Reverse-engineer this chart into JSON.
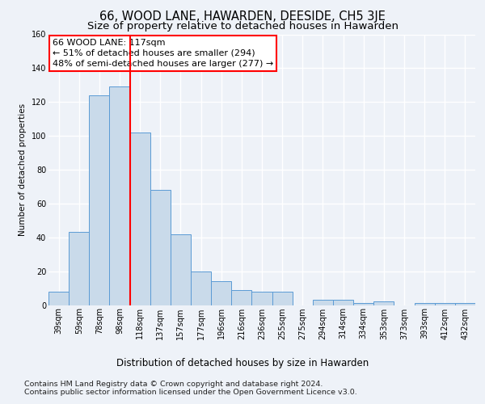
{
  "title": "66, WOOD LANE, HAWARDEN, DEESIDE, CH5 3JE",
  "subtitle": "Size of property relative to detached houses in Hawarden",
  "xlabel_bottom": "Distribution of detached houses by size in Hawarden",
  "ylabel": "Number of detached properties",
  "categories": [
    "39sqm",
    "59sqm",
    "78sqm",
    "98sqm",
    "118sqm",
    "137sqm",
    "157sqm",
    "177sqm",
    "196sqm",
    "216sqm",
    "236sqm",
    "255sqm",
    "275sqm",
    "294sqm",
    "314sqm",
    "334sqm",
    "353sqm",
    "373sqm",
    "393sqm",
    "412sqm",
    "432sqm"
  ],
  "values": [
    8,
    43,
    124,
    129,
    102,
    68,
    42,
    20,
    14,
    9,
    8,
    8,
    0,
    3,
    3,
    1,
    2,
    0,
    1,
    1,
    1
  ],
  "bar_color": "#c9daea",
  "bar_edge_color": "#5b9bd5",
  "red_line_index": 4,
  "annotation_line1": "66 WOOD LANE: 117sqm",
  "annotation_line2": "← 51% of detached houses are smaller (294)",
  "annotation_line3": "48% of semi-detached houses are larger (277) →",
  "annotation_box_color": "white",
  "annotation_box_edge": "red",
  "ylim": [
    0,
    160
  ],
  "yticks": [
    0,
    20,
    40,
    60,
    80,
    100,
    120,
    140,
    160
  ],
  "footer1": "Contains HM Land Registry data © Crown copyright and database right 2024.",
  "footer2": "Contains public sector information licensed under the Open Government Licence v3.0.",
  "bg_color": "#eef2f8",
  "plot_bg_color": "#eef2f8",
  "grid_color": "#ffffff",
  "title_fontsize": 10.5,
  "subtitle_fontsize": 9.5,
  "tick_fontsize": 7,
  "ylabel_fontsize": 7.5,
  "annotation_fontsize": 8,
  "footer_fontsize": 6.8,
  "xlabel_fontsize": 8.5
}
